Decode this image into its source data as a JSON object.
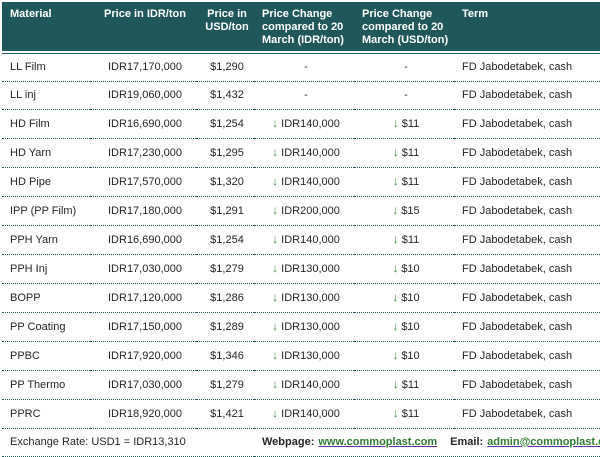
{
  "colors": {
    "header_bg": "#20575A",
    "header_text": "#FFFFFF",
    "body_text": "#262626",
    "dotted_line": "#20575A",
    "arrow_green": "#3A8A3E",
    "link_green": "#2E7D32",
    "link_underline_purple": "#7030A0"
  },
  "icons": {
    "down_arrow": "↓"
  },
  "table": {
    "headers": [
      "Material",
      "Price in IDR/ton",
      "Price in USD/ton",
      "Price Change compared to 20 March (IDR/ton)",
      "Price Change compared to 20 March (USD/ton)",
      "Term"
    ],
    "rows": [
      {
        "material": "LL Film",
        "price_idr": "IDR17,170,000",
        "price_usd": "$1,290",
        "change_idr": "-",
        "change_usd": "-",
        "term": "FD Jabodetabek, cash"
      },
      {
        "material": "LL inj",
        "price_idr": "IDR19,060,000",
        "price_usd": "$1,432",
        "change_idr": "-",
        "change_usd": "-",
        "term": "FD Jabodetabek, cash"
      },
      {
        "material": "HD Film",
        "price_idr": "IDR16,690,000",
        "price_usd": "$1,254",
        "change_idr": "IDR140,000",
        "change_usd": "$11",
        "term": "FD Jabodetabek, cash"
      },
      {
        "material": "HD Yarn",
        "price_idr": "IDR17,230,000",
        "price_usd": "$1,295",
        "change_idr": "IDR140,000",
        "change_usd": "$11",
        "term": "FD Jabodetabek, cash"
      },
      {
        "material": "HD Pipe",
        "price_idr": "IDR17,570,000",
        "price_usd": "$1,320",
        "change_idr": "IDR140,000",
        "change_usd": "$11",
        "term": "FD Jabodetabek, cash"
      },
      {
        "material": "IPP (PP Film)",
        "price_idr": "IDR17,180,000",
        "price_usd": "$1,291",
        "change_idr": "IDR200,000",
        "change_usd": "$15",
        "term": "FD Jabodetabek, cash"
      },
      {
        "material": "PPH Yarn",
        "price_idr": "IDR16,690,000",
        "price_usd": "$1,254",
        "change_idr": "IDR140,000",
        "change_usd": "$11",
        "term": "FD Jabodetabek, cash"
      },
      {
        "material": "PPH Inj",
        "price_idr": "IDR17,030,000",
        "price_usd": "$1,279",
        "change_idr": "IDR130,000",
        "change_usd": "$10",
        "term": "FD Jabodetabek, cash"
      },
      {
        "material": "BOPP",
        "price_idr": "IDR17,120,000",
        "price_usd": "$1,286",
        "change_idr": "IDR130,000",
        "change_usd": "$10",
        "term": "FD Jabodetabek, cash"
      },
      {
        "material": "PP Coating",
        "price_idr": "IDR17,150,000",
        "price_usd": "$1,289",
        "change_idr": "IDR130,000",
        "change_usd": "$10",
        "term": "FD Jabodetabek, cash"
      },
      {
        "material": "PPBC",
        "price_idr": "IDR17,920,000",
        "price_usd": "$1,346",
        "change_idr": "IDR130,000",
        "change_usd": "$10",
        "term": "FD Jabodetabek, cash"
      },
      {
        "material": "PP Thermo",
        "price_idr": "IDR17,030,000",
        "price_usd": "$1,279",
        "change_idr": "IDR140,000",
        "change_usd": "$11",
        "term": "FD Jabodetabek, cash"
      },
      {
        "material": "PPRC",
        "price_idr": "IDR18,920,000",
        "price_usd": "$1,421",
        "change_idr": "IDR140,000",
        "change_usd": "$11",
        "term": "FD Jabodetabek, cash"
      }
    ]
  },
  "footer": {
    "exchange_rate": "Exchange Rate: USD1 = IDR13,310",
    "webpage_label": "Webpage:",
    "webpage_url": "www.commoplast.com",
    "email_label": "Email:",
    "email_address": "admin@commoplast.com"
  }
}
